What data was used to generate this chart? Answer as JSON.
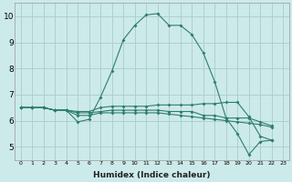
{
  "xlabel": "Humidex (Indice chaleur)",
  "bg_color": "#cceaea",
  "grid_color": "#aacccc",
  "line_color": "#2e7d6e",
  "xlim": [
    -0.5,
    23.5
  ],
  "ylim": [
    4.5,
    10.5
  ],
  "xticks": [
    0,
    1,
    2,
    3,
    4,
    5,
    6,
    7,
    8,
    9,
    10,
    11,
    12,
    13,
    14,
    15,
    16,
    17,
    18,
    19,
    20,
    21,
    22,
    23
  ],
  "yticks": [
    5,
    6,
    7,
    8,
    9,
    10
  ],
  "series": [
    {
      "x": [
        0,
        1,
        2,
        3,
        4,
        5,
        6,
        7,
        8,
        9,
        10,
        11,
        12,
        13,
        14,
        15,
        16,
        17,
        18,
        19,
        20,
        21,
        22
      ],
      "y": [
        6.5,
        6.5,
        6.5,
        6.4,
        6.4,
        5.95,
        6.05,
        6.9,
        7.9,
        9.1,
        9.65,
        10.05,
        10.1,
        9.65,
        9.65,
        9.3,
        8.6,
        7.5,
        6.1,
        5.5,
        4.7,
        5.2,
        5.25
      ]
    },
    {
      "x": [
        0,
        1,
        2,
        3,
        4,
        5,
        6,
        7,
        8,
        9,
        10,
        11,
        12,
        13,
        14,
        15,
        16,
        17,
        18,
        19,
        20,
        21,
        22,
        23
      ],
      "y": [
        6.5,
        6.5,
        6.5,
        6.4,
        6.4,
        6.35,
        6.35,
        6.5,
        6.55,
        6.55,
        6.55,
        6.55,
        6.6,
        6.6,
        6.6,
        6.6,
        6.65,
        6.65,
        6.7,
        6.7,
        6.15,
        5.4,
        5.25,
        null
      ]
    },
    {
      "x": [
        0,
        1,
        2,
        3,
        4,
        5,
        6,
        7,
        8,
        9,
        10,
        11,
        12,
        13,
        14,
        15,
        16,
        17,
        18,
        19,
        20,
        21,
        22,
        23
      ],
      "y": [
        6.5,
        6.5,
        6.5,
        6.4,
        6.4,
        6.3,
        6.3,
        6.35,
        6.4,
        6.4,
        6.4,
        6.4,
        6.4,
        6.35,
        6.35,
        6.35,
        6.2,
        6.2,
        6.1,
        6.1,
        6.1,
        5.95,
        5.8,
        null
      ]
    },
    {
      "x": [
        0,
        1,
        2,
        3,
        4,
        5,
        6,
        7,
        8,
        9,
        10,
        11,
        12,
        13,
        14,
        15,
        16,
        17,
        18,
        19,
        20,
        21,
        22,
        23
      ],
      "y": [
        6.5,
        6.5,
        6.5,
        6.4,
        6.4,
        6.2,
        6.2,
        6.3,
        6.3,
        6.3,
        6.3,
        6.3,
        6.3,
        6.25,
        6.2,
        6.15,
        6.1,
        6.05,
        6.0,
        5.95,
        5.9,
        5.85,
        5.75,
        null
      ]
    }
  ]
}
